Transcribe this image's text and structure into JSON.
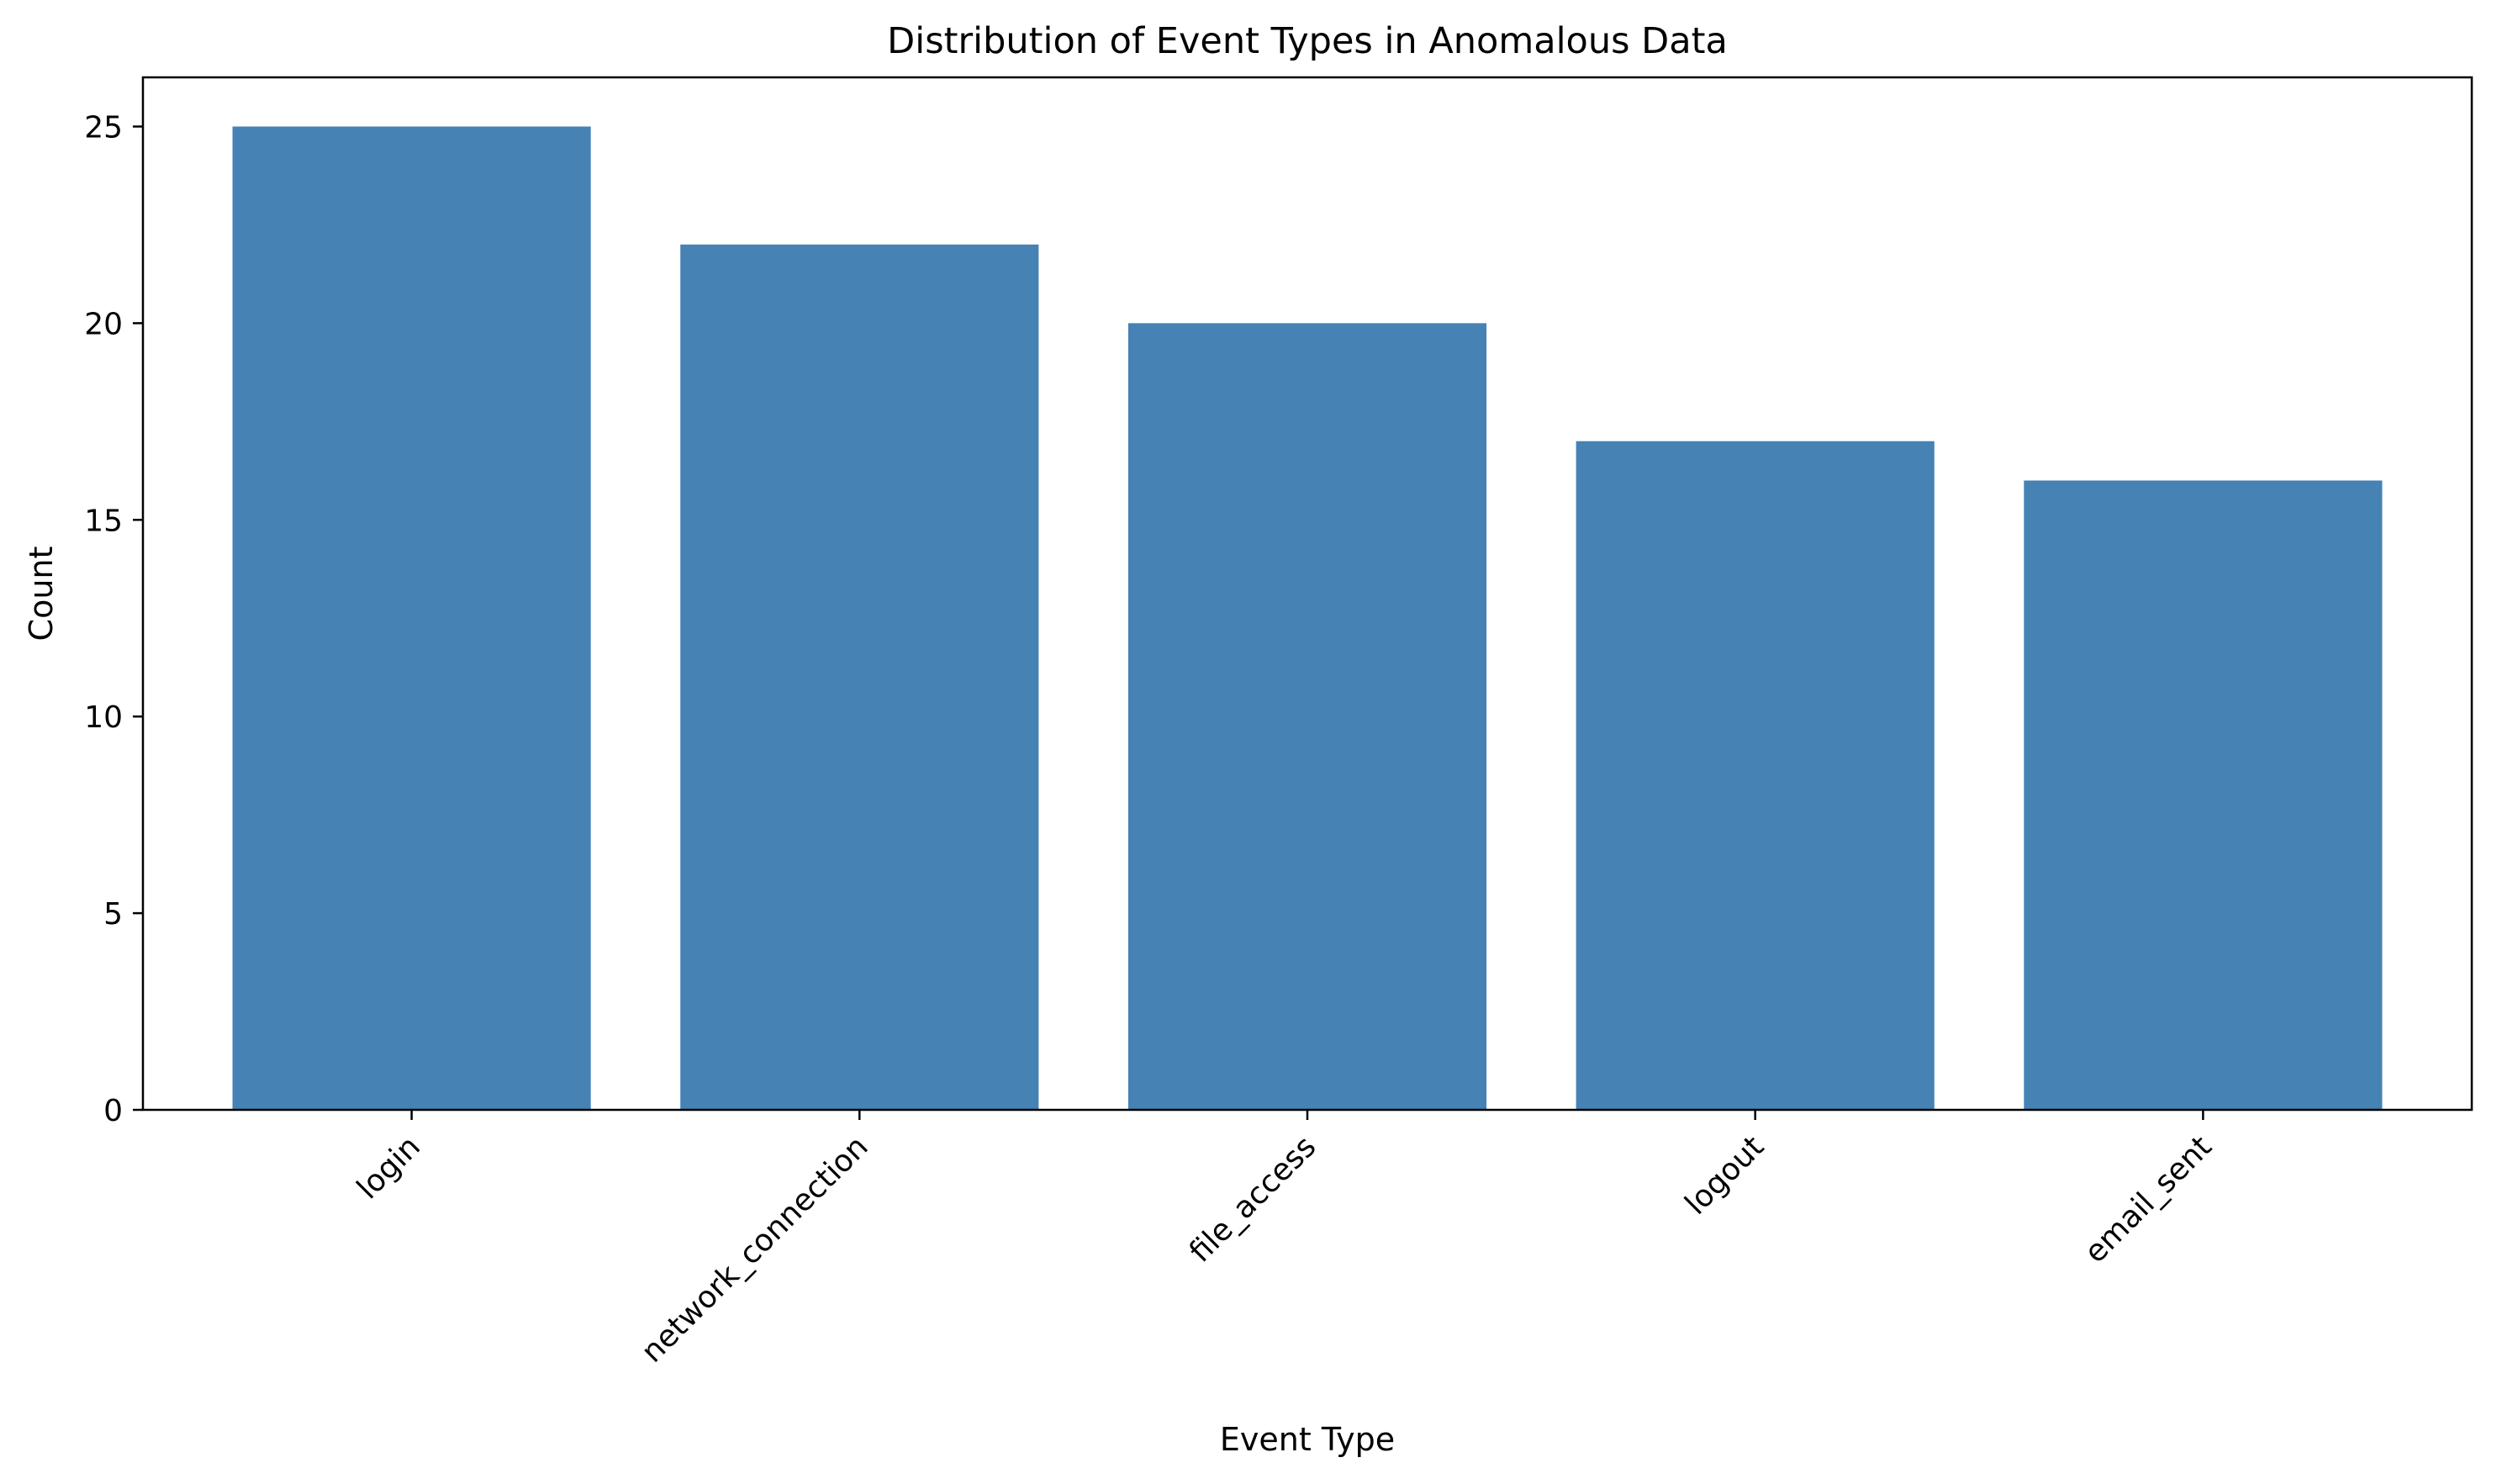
{
  "chart_data": {
    "type": "bar",
    "title": "Distribution of Event Types in Anomalous Data",
    "xlabel": "Event Type",
    "ylabel": "Count",
    "categories": [
      "login",
      "network_connection",
      "file_access",
      "logout",
      "email_sent"
    ],
    "values": [
      25,
      22,
      20,
      17,
      16
    ],
    "ylim": [
      0,
      26.25
    ],
    "yticks": [
      0,
      5,
      10,
      15,
      20,
      25
    ],
    "grid": false,
    "legend": "none",
    "bar_color": "#4682b4"
  }
}
